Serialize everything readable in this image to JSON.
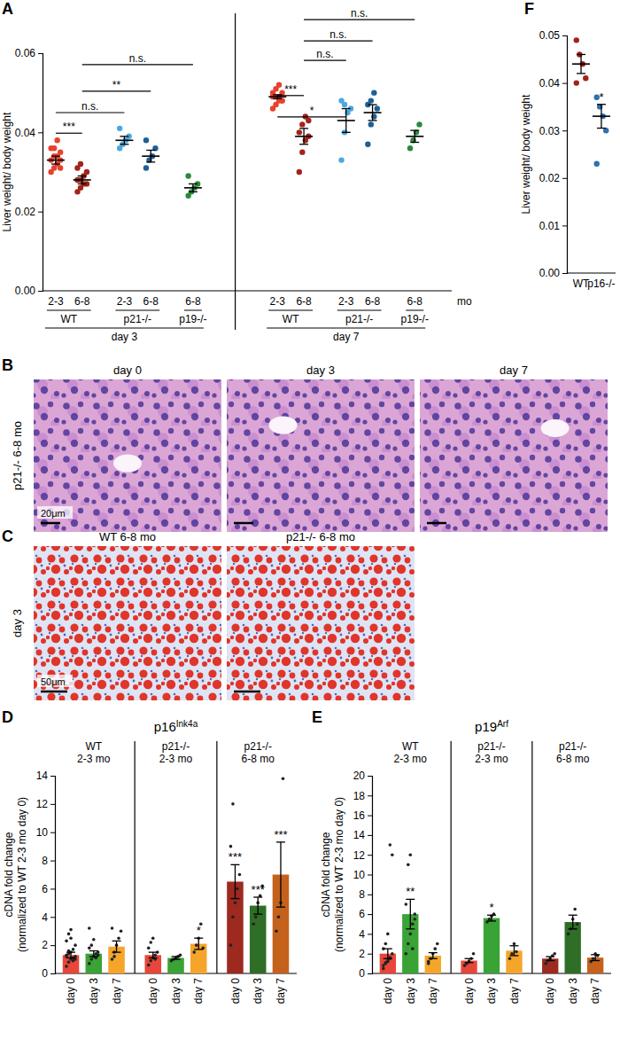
{
  "chart_data": [
    {
      "type": "scatter",
      "panel": "A",
      "y_label": "Liver weight/ body weight",
      "x_label": "mo",
      "categories": [
        "2-3",
        "6-8",
        "2-3",
        "6-8",
        "6-8",
        "2-3",
        "6-8",
        "2-3",
        "6-8",
        "6-8"
      ],
      "genotypes": [
        "WT",
        "WT",
        "p21-/-",
        "p21-/-",
        "p19-/-",
        "WT",
        "WT",
        "p21-/-",
        "p21-/-",
        "p19-/-"
      ],
      "days": [
        "day 3",
        "day 3",
        "day 3",
        "day 3",
        "day 3",
        "day 7",
        "day 7",
        "day 7",
        "day 7",
        "day 7"
      ],
      "colors": [
        "#e8412e",
        "#a3231a",
        "#4aa8e0",
        "#1d5f96",
        "#2a8a3a",
        "#e8412e",
        "#a3231a",
        "#4aa8e0",
        "#1d5f96",
        "#2a8a3a"
      ],
      "values": [
        0.033,
        0.028,
        0.038,
        0.034,
        0.026,
        0.049,
        0.039,
        0.043,
        0.045,
        0.039
      ],
      "errors": [
        0.001,
        0.001,
        0.001,
        0.0015,
        0.001,
        0.0005,
        0.002,
        0.003,
        0.002,
        0.0015
      ],
      "points": [
        [
          0.03,
          0.031,
          0.032,
          0.033,
          0.033,
          0.034,
          0.034,
          0.035,
          0.036,
          0.036,
          0.038,
          0.031
        ],
        [
          0.025,
          0.026,
          0.027,
          0.027,
          0.028,
          0.028,
          0.029,
          0.03,
          0.031,
          0.032
        ],
        [
          0.036,
          0.037,
          0.038,
          0.039,
          0.041
        ],
        [
          0.031,
          0.033,
          0.034,
          0.036,
          0.038
        ],
        [
          0.024,
          0.025,
          0.026,
          0.027,
          0.029
        ],
        [
          0.046,
          0.047,
          0.048,
          0.048,
          0.049,
          0.049,
          0.049,
          0.05,
          0.05,
          0.051,
          0.052,
          0.048
        ],
        [
          0.03,
          0.035,
          0.038,
          0.039,
          0.04,
          0.042,
          0.044,
          0.043
        ],
        [
          0.033,
          0.04,
          0.045,
          0.046,
          0.048,
          0.047
        ],
        [
          0.037,
          0.042,
          0.044,
          0.046,
          0.047,
          0.048,
          0.05
        ],
        [
          0.036,
          0.038,
          0.04,
          0.042
        ]
      ],
      "brackets": [
        {
          "from": 0,
          "to": 1,
          "y": 0.0398,
          "label": "***"
        },
        {
          "from": 0,
          "to": 2,
          "y": 0.045,
          "label": "n.s."
        },
        {
          "from": 1,
          "to": 3,
          "y": 0.0504,
          "label": "**"
        },
        {
          "from": 1,
          "to": 4,
          "y": 0.0571,
          "label": "n.s."
        },
        {
          "from": 5,
          "to": 7,
          "y": 0.0439,
          "label": "*"
        },
        {
          "from": 5,
          "to": 6,
          "y": 0.0493,
          "label": "***"
        },
        {
          "from": 6,
          "to": 7,
          "y": 0.0582,
          "label": "n.s."
        },
        {
          "from": 6,
          "to": 8,
          "y": 0.0631,
          "label": "n.s."
        },
        {
          "from": 6,
          "to": 9,
          "y": 0.0685,
          "label": "n.s."
        }
      ],
      "ylim": [
        0,
        0.06
      ],
      "yticks": [
        {
          "value": 0,
          "label": "0.00"
        },
        0.02,
        0.04,
        0.06
      ]
    },
    {
      "type": "bar",
      "panel": "D",
      "title": [
        "p16",
        "Ink4a"
      ],
      "y_label": "cDNA fold change\n(normalized to WT 2-3 mo day 0)",
      "categories": [
        "day 0",
        "day 3",
        "day 7",
        "day 0",
        "day 3",
        "day 7",
        "day 0",
        "day 3",
        "day 7"
      ],
      "groups": [
        "WT\n2-3 mo",
        "WT\n2-3 mo",
        "WT\n2-3 mo",
        "p21-/-\n2-3 mo",
        "p21-/-\n2-3 mo",
        "p21-/-\n2-3 mo",
        "p21-/-\n6-8 mo",
        "p21-/-\n6-8 mo",
        "p21-/-\n6-8 mo"
      ],
      "colors": [
        "#e8463a",
        "#3aa335",
        "#f5a52a",
        "#e8463a",
        "#3aa335",
        "#f5a52a",
        "#9e2a1f",
        "#2f6e27",
        "#c4621c"
      ],
      "values": [
        1.3,
        1.4,
        1.9,
        1.3,
        1.1,
        2.1,
        6.5,
        4.8,
        7.0
      ],
      "errors": [
        0.2,
        0.2,
        0.4,
        0.2,
        0.1,
        0.4,
        1.2,
        0.6,
        2.3
      ],
      "points": [
        [
          0.5,
          0.8,
          1,
          1.1,
          1.2,
          1.3,
          1.4,
          1.5,
          1.7,
          2,
          2.3,
          2.8,
          3.1,
          0.9,
          1.0,
          1.2,
          1.6,
          2.5
        ],
        [
          0.7,
          1,
          1.2,
          1.4,
          1.5,
          1.8,
          2,
          2.4,
          1.1,
          1.3,
          3.2
        ],
        [
          1,
          1.5,
          2,
          2.5,
          3,
          3.2,
          1.2
        ],
        [
          0.6,
          0.9,
          1.1,
          1.3,
          1.5,
          1.8,
          2.2,
          2.5,
          1.0
        ],
        [
          0.9,
          1.0,
          1.1,
          1.2,
          1.3
        ],
        [
          1.5,
          2,
          2.5,
          3.5,
          1.8
        ],
        [
          2,
          4,
          5,
          6,
          7,
          9,
          12
        ],
        [
          3.5,
          4,
          5,
          5.5,
          6.2
        ],
        [
          3,
          4,
          5,
          13.8
        ]
      ],
      "significance": [
        null,
        null,
        null,
        null,
        null,
        "*",
        "***",
        "***",
        "***"
      ],
      "ylim": [
        0,
        14
      ],
      "yticks": [
        0,
        2,
        4,
        6,
        8,
        10,
        12,
        14
      ]
    },
    {
      "type": "bar",
      "panel": "E",
      "title": [
        "p19",
        "Arf"
      ],
      "y_label": "cDNA fold change\n(normalized to WT 2-3 mo day 0)",
      "categories": [
        "day 0",
        "day 3",
        "day 7",
        "day 0",
        "day 3",
        "day 7",
        "day 0",
        "day 3",
        "day 7"
      ],
      "groups": [
        "WT\n2-3 mo",
        "WT\n2-3 mo",
        "WT\n2-3 mo",
        "p21-/-\n2-3 mo",
        "p21-/-\n2-3 mo",
        "p21-/-\n2-3 mo",
        "p21-/-\n6-8 mo",
        "p21-/-\n6-8 mo",
        "p21-/-\n6-8 mo"
      ],
      "colors": [
        "#e8463a",
        "#3aa335",
        "#f5a52a",
        "#e8463a",
        "#3aa335",
        "#f5a52a",
        "#9e2a1f",
        "#2f6e27",
        "#c4621c"
      ],
      "values": [
        2.0,
        6.0,
        1.8,
        1.3,
        5.6,
        2.3,
        1.5,
        5.2,
        1.6
      ],
      "errors": [
        0.5,
        1.5,
        0.3,
        0.2,
        0.3,
        0.5,
        0.2,
        0.7,
        0.3
      ],
      "points": [
        [
          0.5,
          1,
          1.2,
          1.5,
          2,
          2.5,
          3,
          4,
          13,
          12,
          0.8,
          1.1,
          1.3,
          1.6
        ],
        [
          2,
          3,
          4,
          5,
          6,
          7,
          11,
          12,
          2.5,
          5.5
        ],
        [
          1,
          1.5,
          2,
          2.5,
          3,
          1.2
        ],
        [
          0.8,
          1,
          1.2,
          1.5,
          2
        ],
        [
          5.2,
          5.5,
          5.8,
          6
        ],
        [
          1.5,
          2,
          3,
          2.2
        ],
        [
          1,
          1.3,
          1.5,
          1.8,
          2
        ],
        [
          4,
          4.5,
          5.5,
          6.5,
          5
        ],
        [
          1.2,
          1.5,
          2,
          1.8
        ]
      ],
      "significance": [
        null,
        "**",
        null,
        null,
        "*",
        null,
        null,
        null,
        null
      ],
      "ylim": [
        0,
        20
      ],
      "yticks": [
        0,
        2,
        4,
        6,
        8,
        10,
        12,
        14,
        16,
        18,
        20
      ]
    },
    {
      "type": "scatter",
      "panel": "F",
      "y_label": "Liver weight/ body weight",
      "categories": [
        "WT",
        "p16-/-"
      ],
      "colors": [
        "#a3231a",
        "#2e70b0"
      ],
      "values": [
        0.044,
        0.033
      ],
      "errors": [
        0.002,
        0.0025
      ],
      "points": [
        [
          0.049,
          0.046,
          0.044,
          0.041,
          0.04
        ],
        [
          0.037,
          0.035,
          0.033,
          0.03,
          0.023
        ]
      ],
      "significance": [
        null,
        "*"
      ],
      "ylim": [
        0,
        0.05
      ],
      "yticks": [
        {
          "value": 0,
          "label": "0.00"
        },
        0.01,
        0.02,
        0.03,
        0.04,
        0.05
      ]
    }
  ],
  "images": [
    {
      "panel": "B",
      "row_label": "p21-/- 6-8 mo",
      "panels": [
        "day 0",
        "day 3",
        "day 7"
      ],
      "scale_bar": "20μm"
    },
    {
      "panel": "C",
      "row_label": "day 3",
      "panels": [
        "WT 6-8 mo",
        "p21-/- 6-8 mo"
      ],
      "scale_bar": "50μm"
    }
  ]
}
